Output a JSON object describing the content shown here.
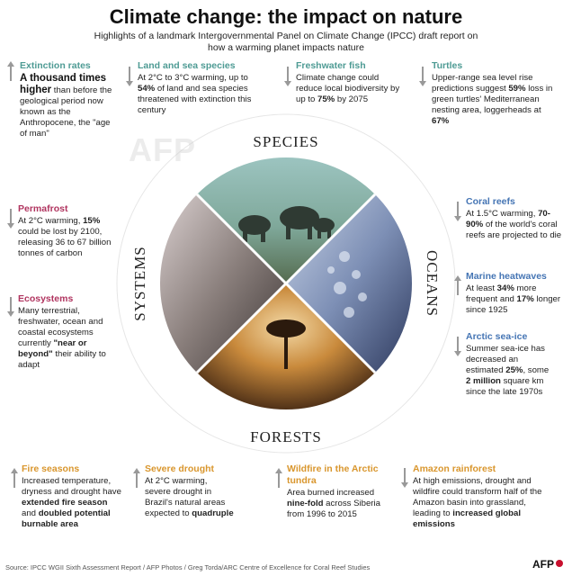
{
  "title": "Climate change: the impact on nature",
  "subtitle": "Highlights of a landmark Intergovernmental Panel on Climate Change (IPCC) draft report on how a warming planet impacts nature",
  "watermark": "AFP",
  "wheel_labels": {
    "species": "SPECIES",
    "oceans": "OCEANS",
    "forests": "FORESTS",
    "systems": "SYSTEMS"
  },
  "species": {
    "extinction": {
      "title": "Extinction rates",
      "big": "A thousand times higher",
      "rest": " than before the geological period now known as the Anthropocene, the \"age of man\""
    },
    "land_sea": {
      "title": "Land and sea species",
      "pre": "At 2°C to 3°C warming, up to ",
      "bold": "54%",
      "post": " of land and sea species threatened with extinction this century"
    },
    "fish": {
      "title": "Freshwater fish",
      "pre": "Climate change could reduce local biodiversity by up to ",
      "bold": "75%",
      "post": " by 2075"
    },
    "turtles": {
      "title": "Turtles",
      "pre": "Upper-range sea level rise predictions suggest ",
      "bold": "59%",
      "mid": " loss in green turtles' Mediterranean nesting area, loggerheads at ",
      "bold2": "67%"
    }
  },
  "systems": {
    "permafrost": {
      "title": "Permafrost",
      "pre": "At 2°C warming, ",
      "bold": "15%",
      "post": " could be lost by 2100, releasing 36 to 67 billion tonnes of carbon"
    },
    "ecosystems": {
      "title": "Ecosystems",
      "pre": "Many terrestrial, freshwater, ocean and coastal ecosystems currently ",
      "bold": "\"near or beyond\"",
      "post": " their ability to adapt"
    }
  },
  "oceans": {
    "coral": {
      "title": "Coral reefs",
      "pre": "At 1.5°C warming, ",
      "bold": "70-90%",
      "post": " of the world's coral reefs are projected to die"
    },
    "heatwaves": {
      "title": "Marine heatwaves",
      "pre": "At least ",
      "bold": "34%",
      "mid": " more frequent and ",
      "bold2": "17%",
      "post": " longer since 1925"
    },
    "seaice": {
      "title": "Arctic sea-ice",
      "pre": "Summer sea-ice has decreased an estimated ",
      "bold": "25%",
      "mid": ", some ",
      "bold2": "2 million",
      "post": " square km since the late 1970s"
    }
  },
  "forests": {
    "fire": {
      "title": "Fire seasons",
      "pre": "Increased temperature, dryness and drought have ",
      "bold": "extended fire season",
      "mid": " and ",
      "bold2": "doubled potential burnable area"
    },
    "drought": {
      "title": "Severe drought",
      "pre": "At 2°C warming, severe drought in Brazil's natural areas expected to ",
      "bold": "quadruple"
    },
    "wildfire": {
      "title": "Wildfire in the Arctic tundra",
      "pre": "Area burned increased ",
      "bold": "nine-fold",
      "post": " across Siberia from 1996 to 2015"
    },
    "amazon": {
      "title": "Amazon rainforest",
      "pre": "At high emissions, drought and wildfire could transform half of the Amazon basin into grassland, leading to ",
      "bold": "increased global emissions"
    }
  },
  "credit": "Source: IPCC WGII Sixth Assessment Report / AFP Photos / Greg Torda/ARC Centre of Excellence for Coral Reef Studies",
  "logo": "AFP",
  "colors": {
    "species": "#4e9b94",
    "systems": "#b0345f",
    "oceans": "#4575b4",
    "forests": "#d9962d"
  }
}
